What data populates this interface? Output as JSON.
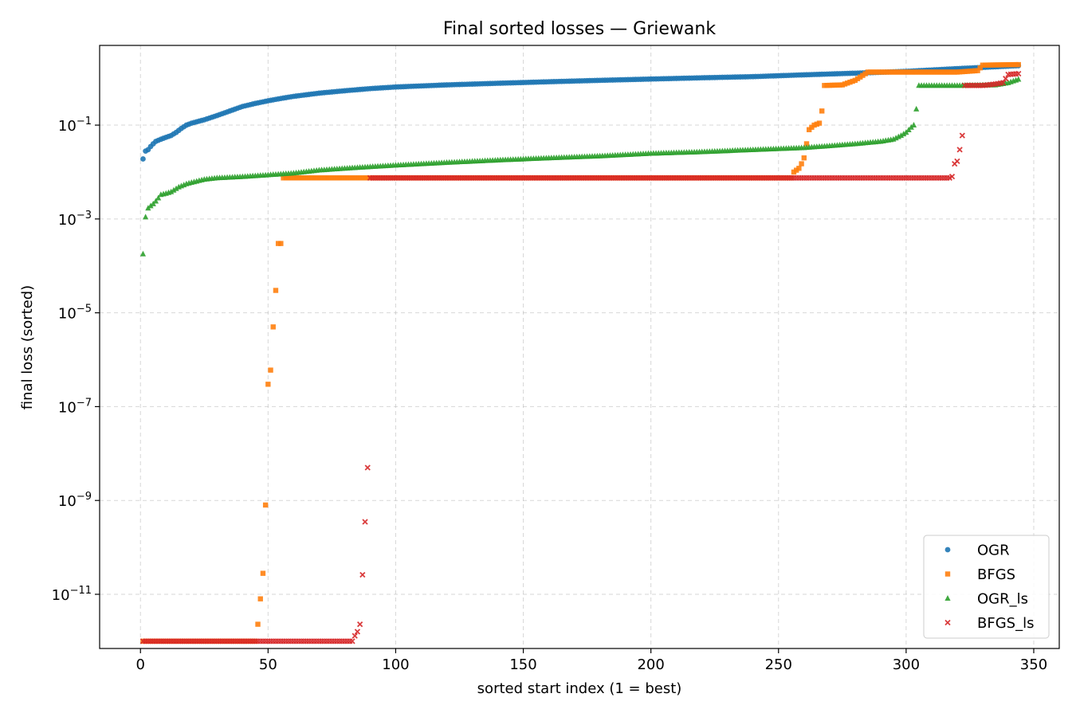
{
  "chart_data": {
    "type": "scatter",
    "title": "Final sorted losses — Griewank",
    "xlabel": "sorted start index (1 = best)",
    "ylabel": "final loss (sorted)",
    "xscale": "linear",
    "yscale": "log",
    "xlim": [
      -16,
      360
    ],
    "ylim": [
      7e-13,
      5
    ],
    "xticks": [
      0,
      50,
      100,
      150,
      200,
      250,
      300,
      350
    ],
    "yticks": [
      {
        "value": 0.1,
        "base": "10",
        "exp": "−1"
      },
      {
        "value": 0.001,
        "base": "10",
        "exp": "−3"
      },
      {
        "value": 1e-05,
        "base": "10",
        "exp": "−5"
      },
      {
        "value": 1e-07,
        "base": "10",
        "exp": "−7"
      },
      {
        "value": 1e-09,
        "base": "10",
        "exp": "−9"
      },
      {
        "value": 1e-11,
        "base": "10",
        "exp": "−11"
      }
    ],
    "grid": true,
    "legend_position": "lower-right",
    "series": [
      {
        "name": "OGR",
        "marker": "circle",
        "color": "#1f77b4",
        "points": [
          [
            1,
            0.019
          ],
          [
            2,
            0.028
          ],
          [
            3,
            0.03
          ],
          [
            4,
            0.035
          ],
          [
            5,
            0.04
          ],
          [
            6,
            0.045
          ],
          [
            8,
            0.05
          ],
          [
            10,
            0.055
          ],
          [
            12,
            0.06
          ],
          [
            14,
            0.07
          ],
          [
            16,
            0.085
          ],
          [
            18,
            0.1
          ],
          [
            20,
            0.11
          ],
          [
            25,
            0.13
          ],
          [
            30,
            0.16
          ],
          [
            35,
            0.2
          ],
          [
            40,
            0.25
          ],
          [
            45,
            0.29
          ],
          [
            50,
            0.33
          ],
          [
            55,
            0.37
          ],
          [
            60,
            0.41
          ],
          [
            70,
            0.48
          ],
          [
            80,
            0.54
          ],
          [
            90,
            0.6
          ],
          [
            100,
            0.65
          ],
          [
            120,
            0.72
          ],
          [
            140,
            0.78
          ],
          [
            160,
            0.84
          ],
          [
            180,
            0.9
          ],
          [
            200,
            0.96
          ],
          [
            220,
            1.02
          ],
          [
            240,
            1.08
          ],
          [
            260,
            1.18
          ],
          [
            280,
            1.28
          ],
          [
            300,
            1.4
          ],
          [
            320,
            1.6
          ],
          [
            344,
            1.85
          ]
        ]
      },
      {
        "name": "BFGS",
        "marker": "square",
        "color": "#ff7f0e",
        "points": [
          [
            1,
            1e-12
          ],
          [
            10,
            1e-12
          ],
          [
            20,
            1e-12
          ],
          [
            30,
            1e-12
          ],
          [
            40,
            1e-12
          ],
          [
            45,
            1e-12
          ],
          [
            46,
            2.3e-12
          ],
          [
            47,
            8e-12
          ],
          [
            48,
            2.8e-11
          ],
          [
            49,
            8e-10
          ],
          [
            50,
            3e-07
          ],
          [
            51,
            6e-07
          ],
          [
            52,
            5e-06
          ],
          [
            53,
            3e-05
          ],
          [
            54,
            0.0003
          ],
          [
            55,
            0.0003
          ],
          [
            56,
            0.0075
          ],
          [
            70,
            0.0075
          ],
          [
            89,
            0.0075
          ],
          [
            100,
            0.0075
          ],
          [
            150,
            0.0075
          ],
          [
            200,
            0.0075
          ],
          [
            255,
            0.0075
          ],
          [
            256,
            0.01
          ],
          [
            258,
            0.012
          ],
          [
            259,
            0.015
          ],
          [
            260,
            0.02
          ],
          [
            261,
            0.04
          ],
          [
            262,
            0.08
          ],
          [
            263,
            0.09
          ],
          [
            264,
            0.1
          ],
          [
            266,
            0.11
          ],
          [
            267,
            0.2
          ],
          [
            268,
            0.7
          ],
          [
            275,
            0.72
          ],
          [
            280,
            0.9
          ],
          [
            285,
            1.35
          ],
          [
            300,
            1.35
          ],
          [
            320,
            1.35
          ],
          [
            328,
            1.45
          ],
          [
            330,
            1.9
          ],
          [
            344,
            1.95
          ]
        ]
      },
      {
        "name": "OGR_ls",
        "marker": "triangle",
        "color": "#2ca02c",
        "points": [
          [
            1,
            0.00018
          ],
          [
            2,
            0.0011
          ],
          [
            3,
            0.0017
          ],
          [
            4,
            0.0019
          ],
          [
            5,
            0.0021
          ],
          [
            6,
            0.0024
          ],
          [
            7,
            0.0028
          ],
          [
            8,
            0.0033
          ],
          [
            10,
            0.0035
          ],
          [
            12,
            0.0038
          ],
          [
            15,
            0.0048
          ],
          [
            18,
            0.0056
          ],
          [
            20,
            0.006
          ],
          [
            25,
            0.007
          ],
          [
            30,
            0.0075
          ],
          [
            40,
            0.008
          ],
          [
            50,
            0.0087
          ],
          [
            60,
            0.0095
          ],
          [
            70,
            0.011
          ],
          [
            80,
            0.012
          ],
          [
            90,
            0.013
          ],
          [
            100,
            0.014
          ],
          [
            120,
            0.016
          ],
          [
            140,
            0.018
          ],
          [
            160,
            0.02
          ],
          [
            180,
            0.022
          ],
          [
            200,
            0.025
          ],
          [
            220,
            0.027
          ],
          [
            240,
            0.03
          ],
          [
            260,
            0.033
          ],
          [
            280,
            0.04
          ],
          [
            290,
            0.045
          ],
          [
            295,
            0.05
          ],
          [
            298,
            0.06
          ],
          [
            300,
            0.07
          ],
          [
            302,
            0.09
          ],
          [
            303,
            0.1
          ],
          [
            304,
            0.22
          ],
          [
            305,
            0.7
          ],
          [
            320,
            0.7
          ],
          [
            335,
            0.72
          ],
          [
            340,
            0.8
          ],
          [
            344,
            0.95
          ]
        ]
      },
      {
        "name": "BFGS_ls",
        "marker": "x",
        "color": "#d62728",
        "points": [
          [
            1,
            1e-12
          ],
          [
            20,
            1e-12
          ],
          [
            40,
            1e-12
          ],
          [
            60,
            1e-12
          ],
          [
            80,
            1e-12
          ],
          [
            83,
            1e-12
          ],
          [
            84,
            1.3e-12
          ],
          [
            85,
            1.6e-12
          ],
          [
            86,
            2.3e-12
          ],
          [
            87,
            2.6e-11
          ],
          [
            88,
            3.5e-10
          ],
          [
            89,
            5e-09
          ],
          [
            90,
            0.0075
          ],
          [
            100,
            0.0075
          ],
          [
            150,
            0.0075
          ],
          [
            200,
            0.0075
          ],
          [
            250,
            0.0075
          ],
          [
            300,
            0.0075
          ],
          [
            317,
            0.0075
          ],
          [
            318,
            0.008
          ],
          [
            319,
            0.015
          ],
          [
            320,
            0.017
          ],
          [
            321,
            0.03
          ],
          [
            322,
            0.06
          ],
          [
            323,
            0.7
          ],
          [
            330,
            0.7
          ],
          [
            335,
            0.75
          ],
          [
            338,
            0.8
          ],
          [
            340,
            1.2
          ],
          [
            344,
            1.25
          ]
        ]
      }
    ]
  }
}
